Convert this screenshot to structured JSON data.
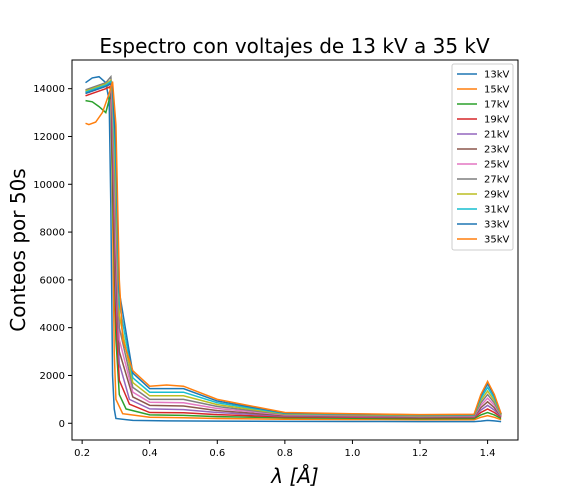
{
  "chart_data": {
    "type": "line",
    "title": "Espectro con voltajes de 13 kV a 35 kV",
    "xlabel": "λ [Å]",
    "ylabel": "Conteos por 50s",
    "xlim": [
      0.17,
      1.49
    ],
    "ylim": [
      -700,
      15200
    ],
    "xticks": [
      0.2,
      0.4,
      0.6,
      0.8,
      1.0,
      1.2,
      1.4
    ],
    "xtick_labels": [
      "0.2",
      "0.4",
      "0.6",
      "0.8",
      "1.0",
      "1.2",
      "1.4"
    ],
    "yticks": [
      0,
      2000,
      4000,
      6000,
      8000,
      10000,
      12000,
      14000
    ],
    "ytick_labels": [
      "0",
      "2000",
      "4000",
      "6000",
      "8000",
      "10000",
      "12000",
      "14000"
    ],
    "legend_position": "upper right",
    "grid": false,
    "series": [
      {
        "name": "13kV",
        "color": "#1f77b4",
        "points": [
          [
            0.21,
            14250
          ],
          [
            0.23,
            14450
          ],
          [
            0.25,
            14500
          ],
          [
            0.27,
            14250
          ],
          [
            0.28,
            13500
          ],
          [
            0.285,
            9000
          ],
          [
            0.29,
            2000
          ],
          [
            0.295,
            600
          ],
          [
            0.3,
            200
          ],
          [
            0.35,
            120
          ],
          [
            0.45,
            100
          ],
          [
            0.6,
            90
          ],
          [
            0.8,
            80
          ],
          [
            1.0,
            75
          ],
          [
            1.2,
            70
          ],
          [
            1.36,
            70
          ],
          [
            1.38,
            90
          ],
          [
            1.4,
            120
          ],
          [
            1.42,
            100
          ],
          [
            1.44,
            70
          ]
        ]
      },
      {
        "name": "15kV",
        "color": "#ff7f0e",
        "points": [
          [
            0.21,
            13800
          ],
          [
            0.23,
            13900
          ],
          [
            0.25,
            14000
          ],
          [
            0.27,
            14100
          ],
          [
            0.285,
            14000
          ],
          [
            0.29,
            9000
          ],
          [
            0.295,
            3000
          ],
          [
            0.3,
            1000
          ],
          [
            0.32,
            400
          ],
          [
            0.4,
            250
          ],
          [
            0.5,
            230
          ],
          [
            0.6,
            200
          ],
          [
            0.8,
            170
          ],
          [
            1.0,
            160
          ],
          [
            1.2,
            150
          ],
          [
            1.36,
            150
          ],
          [
            1.38,
            250
          ],
          [
            1.4,
            320
          ],
          [
            1.42,
            250
          ],
          [
            1.44,
            150
          ]
        ]
      },
      {
        "name": "17kV",
        "color": "#2ca02c",
        "points": [
          [
            0.21,
            13500
          ],
          [
            0.23,
            13450
          ],
          [
            0.25,
            13250
          ],
          [
            0.27,
            13000
          ],
          [
            0.285,
            13800
          ],
          [
            0.29,
            10000
          ],
          [
            0.3,
            3500
          ],
          [
            0.31,
            1200
          ],
          [
            0.33,
            600
          ],
          [
            0.4,
            350
          ],
          [
            0.5,
            330
          ],
          [
            0.6,
            280
          ],
          [
            0.8,
            230
          ],
          [
            1.0,
            210
          ],
          [
            1.2,
            190
          ],
          [
            1.36,
            200
          ],
          [
            1.38,
            350
          ],
          [
            1.4,
            450
          ],
          [
            1.42,
            350
          ],
          [
            1.44,
            200
          ]
        ]
      },
      {
        "name": "19kV",
        "color": "#d62728",
        "points": [
          [
            0.21,
            13700
          ],
          [
            0.23,
            13800
          ],
          [
            0.25,
            13900
          ],
          [
            0.27,
            14000
          ],
          [
            0.285,
            14100
          ],
          [
            0.29,
            11000
          ],
          [
            0.3,
            4500
          ],
          [
            0.31,
            1800
          ],
          [
            0.34,
            800
          ],
          [
            0.4,
            450
          ],
          [
            0.5,
            440
          ],
          [
            0.6,
            360
          ],
          [
            0.8,
            270
          ],
          [
            1.0,
            250
          ],
          [
            1.2,
            230
          ],
          [
            1.36,
            240
          ],
          [
            1.38,
            450
          ],
          [
            1.4,
            600
          ],
          [
            1.42,
            450
          ],
          [
            1.44,
            250
          ]
        ]
      },
      {
        "name": "21kV",
        "color": "#9467bd",
        "points": [
          [
            0.21,
            13800
          ],
          [
            0.23,
            13900
          ],
          [
            0.25,
            14000
          ],
          [
            0.27,
            14100
          ],
          [
            0.285,
            14200
          ],
          [
            0.29,
            12000
          ],
          [
            0.3,
            5500
          ],
          [
            0.31,
            2500
          ],
          [
            0.34,
            1000
          ],
          [
            0.4,
            600
          ],
          [
            0.5,
            570
          ],
          [
            0.6,
            450
          ],
          [
            0.8,
            300
          ],
          [
            1.0,
            280
          ],
          [
            1.2,
            250
          ],
          [
            1.36,
            260
          ],
          [
            1.38,
            550
          ],
          [
            1.4,
            750
          ],
          [
            1.42,
            550
          ],
          [
            1.44,
            280
          ]
        ]
      },
      {
        "name": "23kV",
        "color": "#8c564b",
        "points": [
          [
            0.21,
            13850
          ],
          [
            0.23,
            13950
          ],
          [
            0.25,
            14050
          ],
          [
            0.27,
            14150
          ],
          [
            0.285,
            14250
          ],
          [
            0.29,
            12500
          ],
          [
            0.3,
            6500
          ],
          [
            0.31,
            3000
          ],
          [
            0.35,
            1100
          ],
          [
            0.4,
            750
          ],
          [
            0.5,
            720
          ],
          [
            0.6,
            530
          ],
          [
            0.8,
            320
          ],
          [
            1.0,
            300
          ],
          [
            1.2,
            270
          ],
          [
            1.36,
            280
          ],
          [
            1.38,
            650
          ],
          [
            1.4,
            900
          ],
          [
            1.42,
            650
          ],
          [
            1.44,
            300
          ]
        ]
      },
      {
        "name": "25kV",
        "color": "#e377c2",
        "points": [
          [
            0.21,
            13900
          ],
          [
            0.23,
            14000
          ],
          [
            0.25,
            14100
          ],
          [
            0.27,
            14200
          ],
          [
            0.285,
            14300
          ],
          [
            0.29,
            13000
          ],
          [
            0.3,
            7500
          ],
          [
            0.31,
            3500
          ],
          [
            0.35,
            1300
          ],
          [
            0.4,
            880
          ],
          [
            0.5,
            860
          ],
          [
            0.6,
            620
          ],
          [
            0.8,
            350
          ],
          [
            1.0,
            320
          ],
          [
            1.2,
            290
          ],
          [
            1.36,
            300
          ],
          [
            1.38,
            750
          ],
          [
            1.4,
            1050
          ],
          [
            1.42,
            750
          ],
          [
            1.44,
            320
          ]
        ]
      },
      {
        "name": "27kV",
        "color": "#7f7f7f",
        "points": [
          [
            0.21,
            13950
          ],
          [
            0.23,
            14050
          ],
          [
            0.25,
            14150
          ],
          [
            0.27,
            14250
          ],
          [
            0.285,
            14500
          ],
          [
            0.29,
            13500
          ],
          [
            0.3,
            8500
          ],
          [
            0.31,
            4000
          ],
          [
            0.35,
            1500
          ],
          [
            0.4,
            1000
          ],
          [
            0.5,
            1000
          ],
          [
            0.6,
            700
          ],
          [
            0.8,
            370
          ],
          [
            1.0,
            340
          ],
          [
            1.2,
            300
          ],
          [
            1.36,
            320
          ],
          [
            1.38,
            850
          ],
          [
            1.4,
            1200
          ],
          [
            1.42,
            850
          ],
          [
            1.44,
            340
          ]
        ]
      },
      {
        "name": "29kV",
        "color": "#bcbd22",
        "points": [
          [
            0.21,
            13900
          ],
          [
            0.23,
            14000
          ],
          [
            0.25,
            14100
          ],
          [
            0.27,
            14200
          ],
          [
            0.285,
            14350
          ],
          [
            0.29,
            13800
          ],
          [
            0.3,
            9500
          ],
          [
            0.31,
            4500
          ],
          [
            0.35,
            1700
          ],
          [
            0.4,
            1150
          ],
          [
            0.5,
            1150
          ],
          [
            0.6,
            780
          ],
          [
            0.8,
            390
          ],
          [
            1.0,
            360
          ],
          [
            1.2,
            320
          ],
          [
            1.36,
            340
          ],
          [
            1.38,
            950
          ],
          [
            1.4,
            1350
          ],
          [
            1.42,
            950
          ],
          [
            1.44,
            360
          ]
        ]
      },
      {
        "name": "31kV",
        "color": "#17becf",
        "points": [
          [
            0.21,
            13850
          ],
          [
            0.23,
            13950
          ],
          [
            0.25,
            14050
          ],
          [
            0.27,
            14150
          ],
          [
            0.285,
            14300
          ],
          [
            0.29,
            14000
          ],
          [
            0.3,
            10500
          ],
          [
            0.31,
            5000
          ],
          [
            0.35,
            1900
          ],
          [
            0.4,
            1300
          ],
          [
            0.5,
            1300
          ],
          [
            0.6,
            860
          ],
          [
            0.8,
            410
          ],
          [
            1.0,
            380
          ],
          [
            1.2,
            340
          ],
          [
            1.36,
            350
          ],
          [
            1.38,
            1050
          ],
          [
            1.4,
            1500
          ],
          [
            1.42,
            1050
          ],
          [
            1.44,
            380
          ]
        ]
      },
      {
        "name": "33kV",
        "color": "#1f77b4",
        "points": [
          [
            0.21,
            13800
          ],
          [
            0.23,
            13900
          ],
          [
            0.25,
            14000
          ],
          [
            0.27,
            14100
          ],
          [
            0.285,
            14200
          ],
          [
            0.29,
            14100
          ],
          [
            0.3,
            11500
          ],
          [
            0.31,
            5500
          ],
          [
            0.35,
            2100
          ],
          [
            0.4,
            1450
          ],
          [
            0.5,
            1450
          ],
          [
            0.6,
            930
          ],
          [
            0.8,
            430
          ],
          [
            1.0,
            390
          ],
          [
            1.2,
            350
          ],
          [
            1.36,
            360
          ],
          [
            1.38,
            1150
          ],
          [
            1.4,
            1650
          ],
          [
            1.42,
            1150
          ],
          [
            1.44,
            390
          ]
        ]
      },
      {
        "name": "35kV",
        "color": "#ff7f0e",
        "points": [
          [
            0.21,
            12550
          ],
          [
            0.22,
            12500
          ],
          [
            0.24,
            12600
          ],
          [
            0.26,
            13000
          ],
          [
            0.28,
            13800
          ],
          [
            0.29,
            14300
          ],
          [
            0.3,
            12500
          ],
          [
            0.31,
            6000
          ],
          [
            0.32,
            3500
          ],
          [
            0.35,
            2200
          ],
          [
            0.4,
            1550
          ],
          [
            0.45,
            1600
          ],
          [
            0.5,
            1550
          ],
          [
            0.6,
            1000
          ],
          [
            0.8,
            450
          ],
          [
            1.0,
            400
          ],
          [
            1.2,
            360
          ],
          [
            1.36,
            380
          ],
          [
            1.38,
            1200
          ],
          [
            1.4,
            1750
          ],
          [
            1.42,
            1200
          ],
          [
            1.44,
            400
          ]
        ]
      }
    ]
  }
}
